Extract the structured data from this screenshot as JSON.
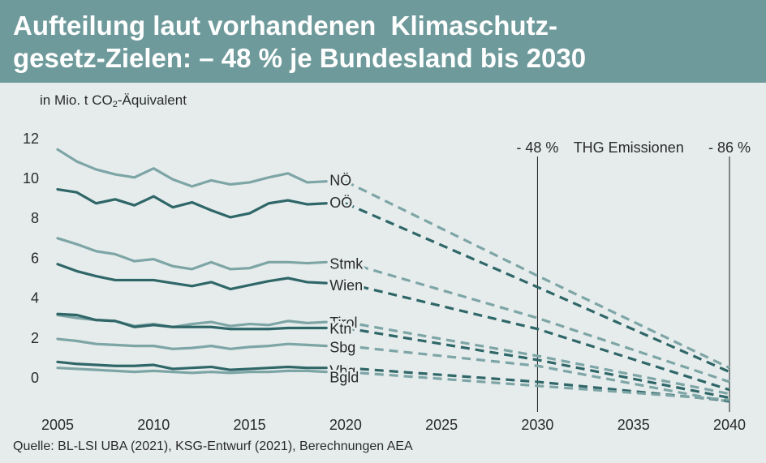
{
  "title_lines": [
    "Aufteilung laut vorhandenen  Klimaschutz-",
    "gesetz-Zielen: – 48 % je Bundesland bis 2030"
  ],
  "unit_label": {
    "prefix": "in Mio. t CO",
    "sub": "2",
    "suffix": "-Äquivalent"
  },
  "source": "Quelle: BL-LSI UBA (2021), KSG-Entwurf (2021), Berechnungen AEA",
  "colors": {
    "background": "#e6ecec",
    "title_bar": "#6f9a9b",
    "light_series": "#7ea5a6",
    "dark_series": "#2f6668",
    "vline": "#1a1a1a"
  },
  "chart_data": {
    "type": "line",
    "title": "Aufteilung laut vorhandenen  Klimaschutz-gesetz-Zielen: – 48 % je Bundesland bis 2030",
    "ylabel": "in Mio. t CO2-Äquivalent",
    "xlabel": "",
    "xlim": [
      2005,
      2040
    ],
    "ylim": [
      -1.2,
      12
    ],
    "x_ticks": [
      2005,
      2010,
      2015,
      2020,
      2025,
      2030,
      2035,
      2040
    ],
    "y_ticks": [
      0,
      2,
      4,
      6,
      8,
      10,
      12
    ],
    "grid": false,
    "legend": "inline labels at 2020",
    "annotations": [
      {
        "label": "- 48 %",
        "x": 2030
      },
      {
        "label": "THG Emissionen",
        "x": 2035
      },
      {
        "label": "- 86 %",
        "x": 2040
      }
    ],
    "series": [
      {
        "name": "NÖ",
        "tone": "light",
        "x": [
          2005,
          2006,
          2007,
          2008,
          2009,
          2010,
          2011,
          2012,
          2013,
          2014,
          2015,
          2016,
          2017,
          2018,
          2019
        ],
        "values": [
          11.45,
          10.85,
          10.45,
          10.2,
          10.05,
          10.5,
          9.95,
          9.6,
          9.9,
          9.7,
          9.8,
          10.05,
          10.25,
          9.8,
          9.85
        ],
        "projection": {
          "x": [
            2020,
            2030,
            2040
          ],
          "values": [
            9.85,
            5.12,
            0.5
          ]
        }
      },
      {
        "name": "OÖ",
        "tone": "dark",
        "x": [
          2005,
          2006,
          2007,
          2008,
          2009,
          2010,
          2011,
          2012,
          2013,
          2014,
          2015,
          2016,
          2017,
          2018,
          2019
        ],
        "values": [
          9.45,
          9.3,
          8.75,
          8.95,
          8.65,
          9.1,
          8.55,
          8.8,
          8.4,
          8.05,
          8.25,
          8.75,
          8.9,
          8.7,
          8.75
        ],
        "projection": {
          "x": [
            2020,
            2030,
            2040
          ],
          "values": [
            8.75,
            4.55,
            0.3
          ]
        }
      },
      {
        "name": "Stmk",
        "tone": "light",
        "x": [
          2005,
          2006,
          2007,
          2008,
          2009,
          2010,
          2011,
          2012,
          2013,
          2014,
          2015,
          2016,
          2017,
          2018,
          2019
        ],
        "values": [
          7.0,
          6.7,
          6.35,
          6.2,
          5.85,
          5.95,
          5.6,
          5.45,
          5.8,
          5.45,
          5.5,
          5.8,
          5.8,
          5.75,
          5.8
        ],
        "projection": {
          "x": [
            2020,
            2030,
            2040
          ],
          "values": [
            5.8,
            3.0,
            -0.2
          ]
        }
      },
      {
        "name": "Wien",
        "tone": "dark",
        "x": [
          2005,
          2006,
          2007,
          2008,
          2009,
          2010,
          2011,
          2012,
          2013,
          2014,
          2015,
          2016,
          2017,
          2018,
          2019
        ],
        "values": [
          5.7,
          5.35,
          5.1,
          4.9,
          4.9,
          4.9,
          4.75,
          4.6,
          4.8,
          4.45,
          4.65,
          4.85,
          5.0,
          4.8,
          4.75
        ],
        "projection": {
          "x": [
            2020,
            2030,
            2040
          ],
          "values": [
            4.75,
            2.45,
            -0.6
          ]
        }
      },
      {
        "name": "Tirol",
        "tone": "light",
        "x": [
          2005,
          2006,
          2007,
          2008,
          2009,
          2010,
          2011,
          2012,
          2013,
          2014,
          2015,
          2016,
          2017,
          2018,
          2019
        ],
        "values": [
          3.15,
          3.0,
          2.9,
          2.85,
          2.6,
          2.7,
          2.55,
          2.7,
          2.8,
          2.6,
          2.7,
          2.65,
          2.85,
          2.75,
          2.8
        ],
        "projection": {
          "x": [
            2020,
            2030,
            2040
          ],
          "values": [
            2.8,
            1.1,
            -0.8
          ]
        }
      },
      {
        "name": "Ktn",
        "tone": "dark",
        "x": [
          2005,
          2006,
          2007,
          2008,
          2009,
          2010,
          2011,
          2012,
          2013,
          2014,
          2015,
          2016,
          2017,
          2018,
          2019
        ],
        "values": [
          3.2,
          3.15,
          2.9,
          2.85,
          2.55,
          2.65,
          2.55,
          2.55,
          2.55,
          2.45,
          2.45,
          2.45,
          2.5,
          2.5,
          2.5
        ],
        "projection": {
          "x": [
            2020,
            2030,
            2040
          ],
          "values": [
            2.5,
            0.9,
            -1.0
          ]
        }
      },
      {
        "name": "Sbg",
        "tone": "light",
        "x": [
          2005,
          2006,
          2007,
          2008,
          2009,
          2010,
          2011,
          2012,
          2013,
          2014,
          2015,
          2016,
          2017,
          2018,
          2019
        ],
        "values": [
          1.95,
          1.85,
          1.7,
          1.65,
          1.6,
          1.6,
          1.45,
          1.5,
          1.6,
          1.45,
          1.55,
          1.6,
          1.7,
          1.65,
          1.6
        ],
        "projection": {
          "x": [
            2020,
            2030,
            2040
          ],
          "values": [
            1.6,
            0.6,
            -1.2
          ]
        }
      },
      {
        "name": "Vbg",
        "tone": "dark",
        "x": [
          2005,
          2006,
          2007,
          2008,
          2009,
          2010,
          2011,
          2012,
          2013,
          2014,
          2015,
          2016,
          2017,
          2018,
          2019
        ],
        "values": [
          0.8,
          0.7,
          0.65,
          0.6,
          0.6,
          0.65,
          0.45,
          0.5,
          0.55,
          0.4,
          0.45,
          0.5,
          0.55,
          0.5,
          0.5
        ],
        "projection": {
          "x": [
            2020,
            2030,
            2040
          ],
          "values": [
            0.5,
            -0.2,
            -1.15
          ]
        }
      },
      {
        "name": "Bgld",
        "tone": "light",
        "x": [
          2005,
          2006,
          2007,
          2008,
          2009,
          2010,
          2011,
          2012,
          2013,
          2014,
          2015,
          2016,
          2017,
          2018,
          2019
        ],
        "values": [
          0.5,
          0.45,
          0.4,
          0.35,
          0.3,
          0.35,
          0.3,
          0.25,
          0.3,
          0.25,
          0.3,
          0.3,
          0.35,
          0.35,
          0.3
        ],
        "projection": {
          "x": [
            2020,
            2030,
            2040
          ],
          "values": [
            0.3,
            -0.4,
            -1.1
          ]
        }
      }
    ]
  }
}
